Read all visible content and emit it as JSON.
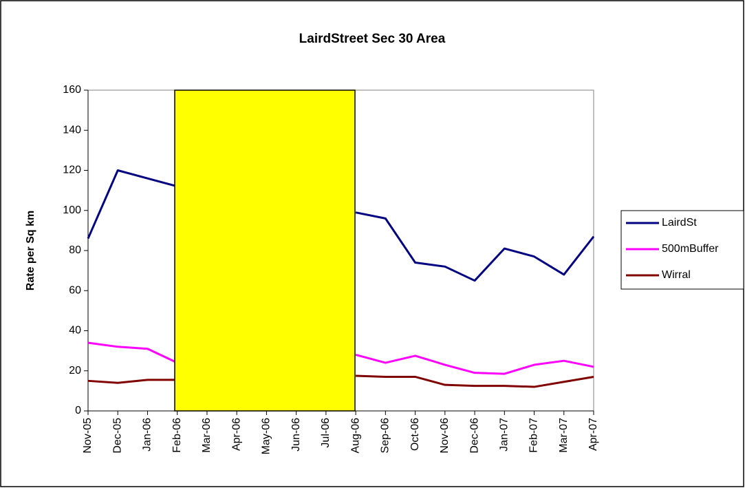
{
  "chart_data": {
    "type": "line",
    "title": "LairdStreet Sec 30 Area",
    "ylabel": "Rate per Sq km",
    "categories": [
      "Nov-05",
      "Dec-05",
      "Jan-06",
      "Feb-06",
      "Mar-06",
      "Apr-06",
      "May-06",
      "Jun-06",
      "Jul-06",
      "Aug-06",
      "Sep-06",
      "Oct-06",
      "Nov-06",
      "Dec-06",
      "Jan-07",
      "Feb-07",
      "Mar-07",
      "Apr-07"
    ],
    "series": [
      {
        "name": "LairdSt",
        "color": "#000080",
        "values": [
          86,
          120,
          116,
          112,
          null,
          null,
          null,
          null,
          null,
          99,
          96,
          74,
          72,
          65,
          81,
          77,
          68,
          87
        ]
      },
      {
        "name": "500mBuffer",
        "color": "#ff00ff",
        "values": [
          34,
          32,
          31,
          24,
          null,
          null,
          null,
          null,
          null,
          28,
          24,
          27.5,
          23,
          19,
          18.5,
          23,
          25,
          22
        ]
      },
      {
        "name": "Wirral",
        "color": "#800000",
        "values": [
          15,
          14,
          15.5,
          15.5,
          null,
          null,
          null,
          null,
          null,
          17.5,
          17,
          17,
          13,
          12.5,
          12.5,
          12,
          14.5,
          17
        ]
      }
    ],
    "ylim": [
      0,
      160
    ],
    "yticks": [
      0,
      20,
      40,
      60,
      80,
      100,
      120,
      140,
      160
    ],
    "legend": "right"
  }
}
